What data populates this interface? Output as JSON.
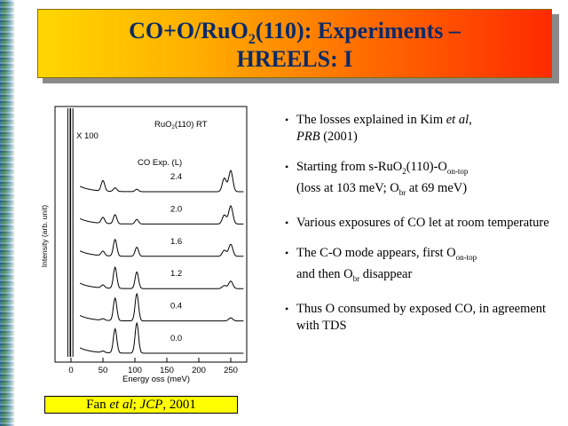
{
  "slide": {
    "title_line1_a": "CO+O/RuO",
    "title_line1_sub": "2",
    "title_line1_b": "(110): Experiments –",
    "title_line2": "HREELS: I"
  },
  "caption": {
    "prefix": "Fan ",
    "etal": "et al",
    "sep": "; ",
    "journal": "JCP",
    "suffix": ", 2001"
  },
  "bullets": [
    {
      "pre": "The losses explained in Kim ",
      "em": "et al",
      "mid": ", ",
      "em2": "PRB",
      "post": " (2001)"
    },
    {
      "text_a": "Starting from s-RuO",
      "sub_a": "2",
      "text_b": "(110)-O",
      "sub_b": "on-top",
      "text_c": "(loss at 103 meV; O",
      "sub_c": "br",
      "text_d": " at 69 meV)"
    },
    {
      "text": "Various exposures of CO let at room temperature"
    },
    {
      "text_a": "The C-O mode appears, first O",
      "sub_a": "on-top",
      "text_b": " and then O",
      "sub_b": "br",
      "text_c": " disappear"
    },
    {
      "text": "Thus O consumed by exposed CO, in agreement with TDS"
    }
  ],
  "chart_data": {
    "type": "line",
    "xlabel": "Energy oss (meV)",
    "ylabel": "Intensity (arb. unit)",
    "xlim": [
      -25,
      275
    ],
    "xticks": [
      "0",
      "50",
      "100",
      "150",
      "200",
      "250"
    ],
    "annotations": {
      "multiplier": "X 100",
      "sample_pre": "RuO",
      "sample_sub": "2",
      "sample_post": "(110) RT",
      "legend_title": "CO Exp. (L)"
    },
    "series": [
      {
        "name": "2.4",
        "peaks": [
          [
            50,
            0.35
          ],
          [
            69,
            0.12
          ],
          [
            103,
            0.08
          ],
          [
            240,
            0.45
          ],
          [
            250,
            0.7
          ]
        ]
      },
      {
        "name": "2.0",
        "peaks": [
          [
            50,
            0.2
          ],
          [
            69,
            0.3
          ],
          [
            103,
            0.15
          ],
          [
            240,
            0.3
          ],
          [
            250,
            0.6
          ]
        ]
      },
      {
        "name": "1.6",
        "peaks": [
          [
            50,
            0.15
          ],
          [
            69,
            0.55
          ],
          [
            103,
            0.3
          ],
          [
            240,
            0.2
          ],
          [
            250,
            0.4
          ]
        ]
      },
      {
        "name": "1.2",
        "peaks": [
          [
            50,
            0.1
          ],
          [
            69,
            0.7
          ],
          [
            103,
            0.55
          ],
          [
            240,
            0.1
          ],
          [
            250,
            0.25
          ]
        ]
      },
      {
        "name": "0.4",
        "peaks": [
          [
            50,
            0.05
          ],
          [
            69,
            0.75
          ],
          [
            103,
            0.9
          ],
          [
            250,
            0.1
          ]
        ]
      },
      {
        "name": "0.0",
        "peaks": [
          [
            50,
            0.05
          ],
          [
            69,
            0.8
          ],
          [
            103,
            1.0
          ]
        ]
      }
    ],
    "colors": {
      "line": "#000000",
      "axis": "#000000"
    }
  }
}
